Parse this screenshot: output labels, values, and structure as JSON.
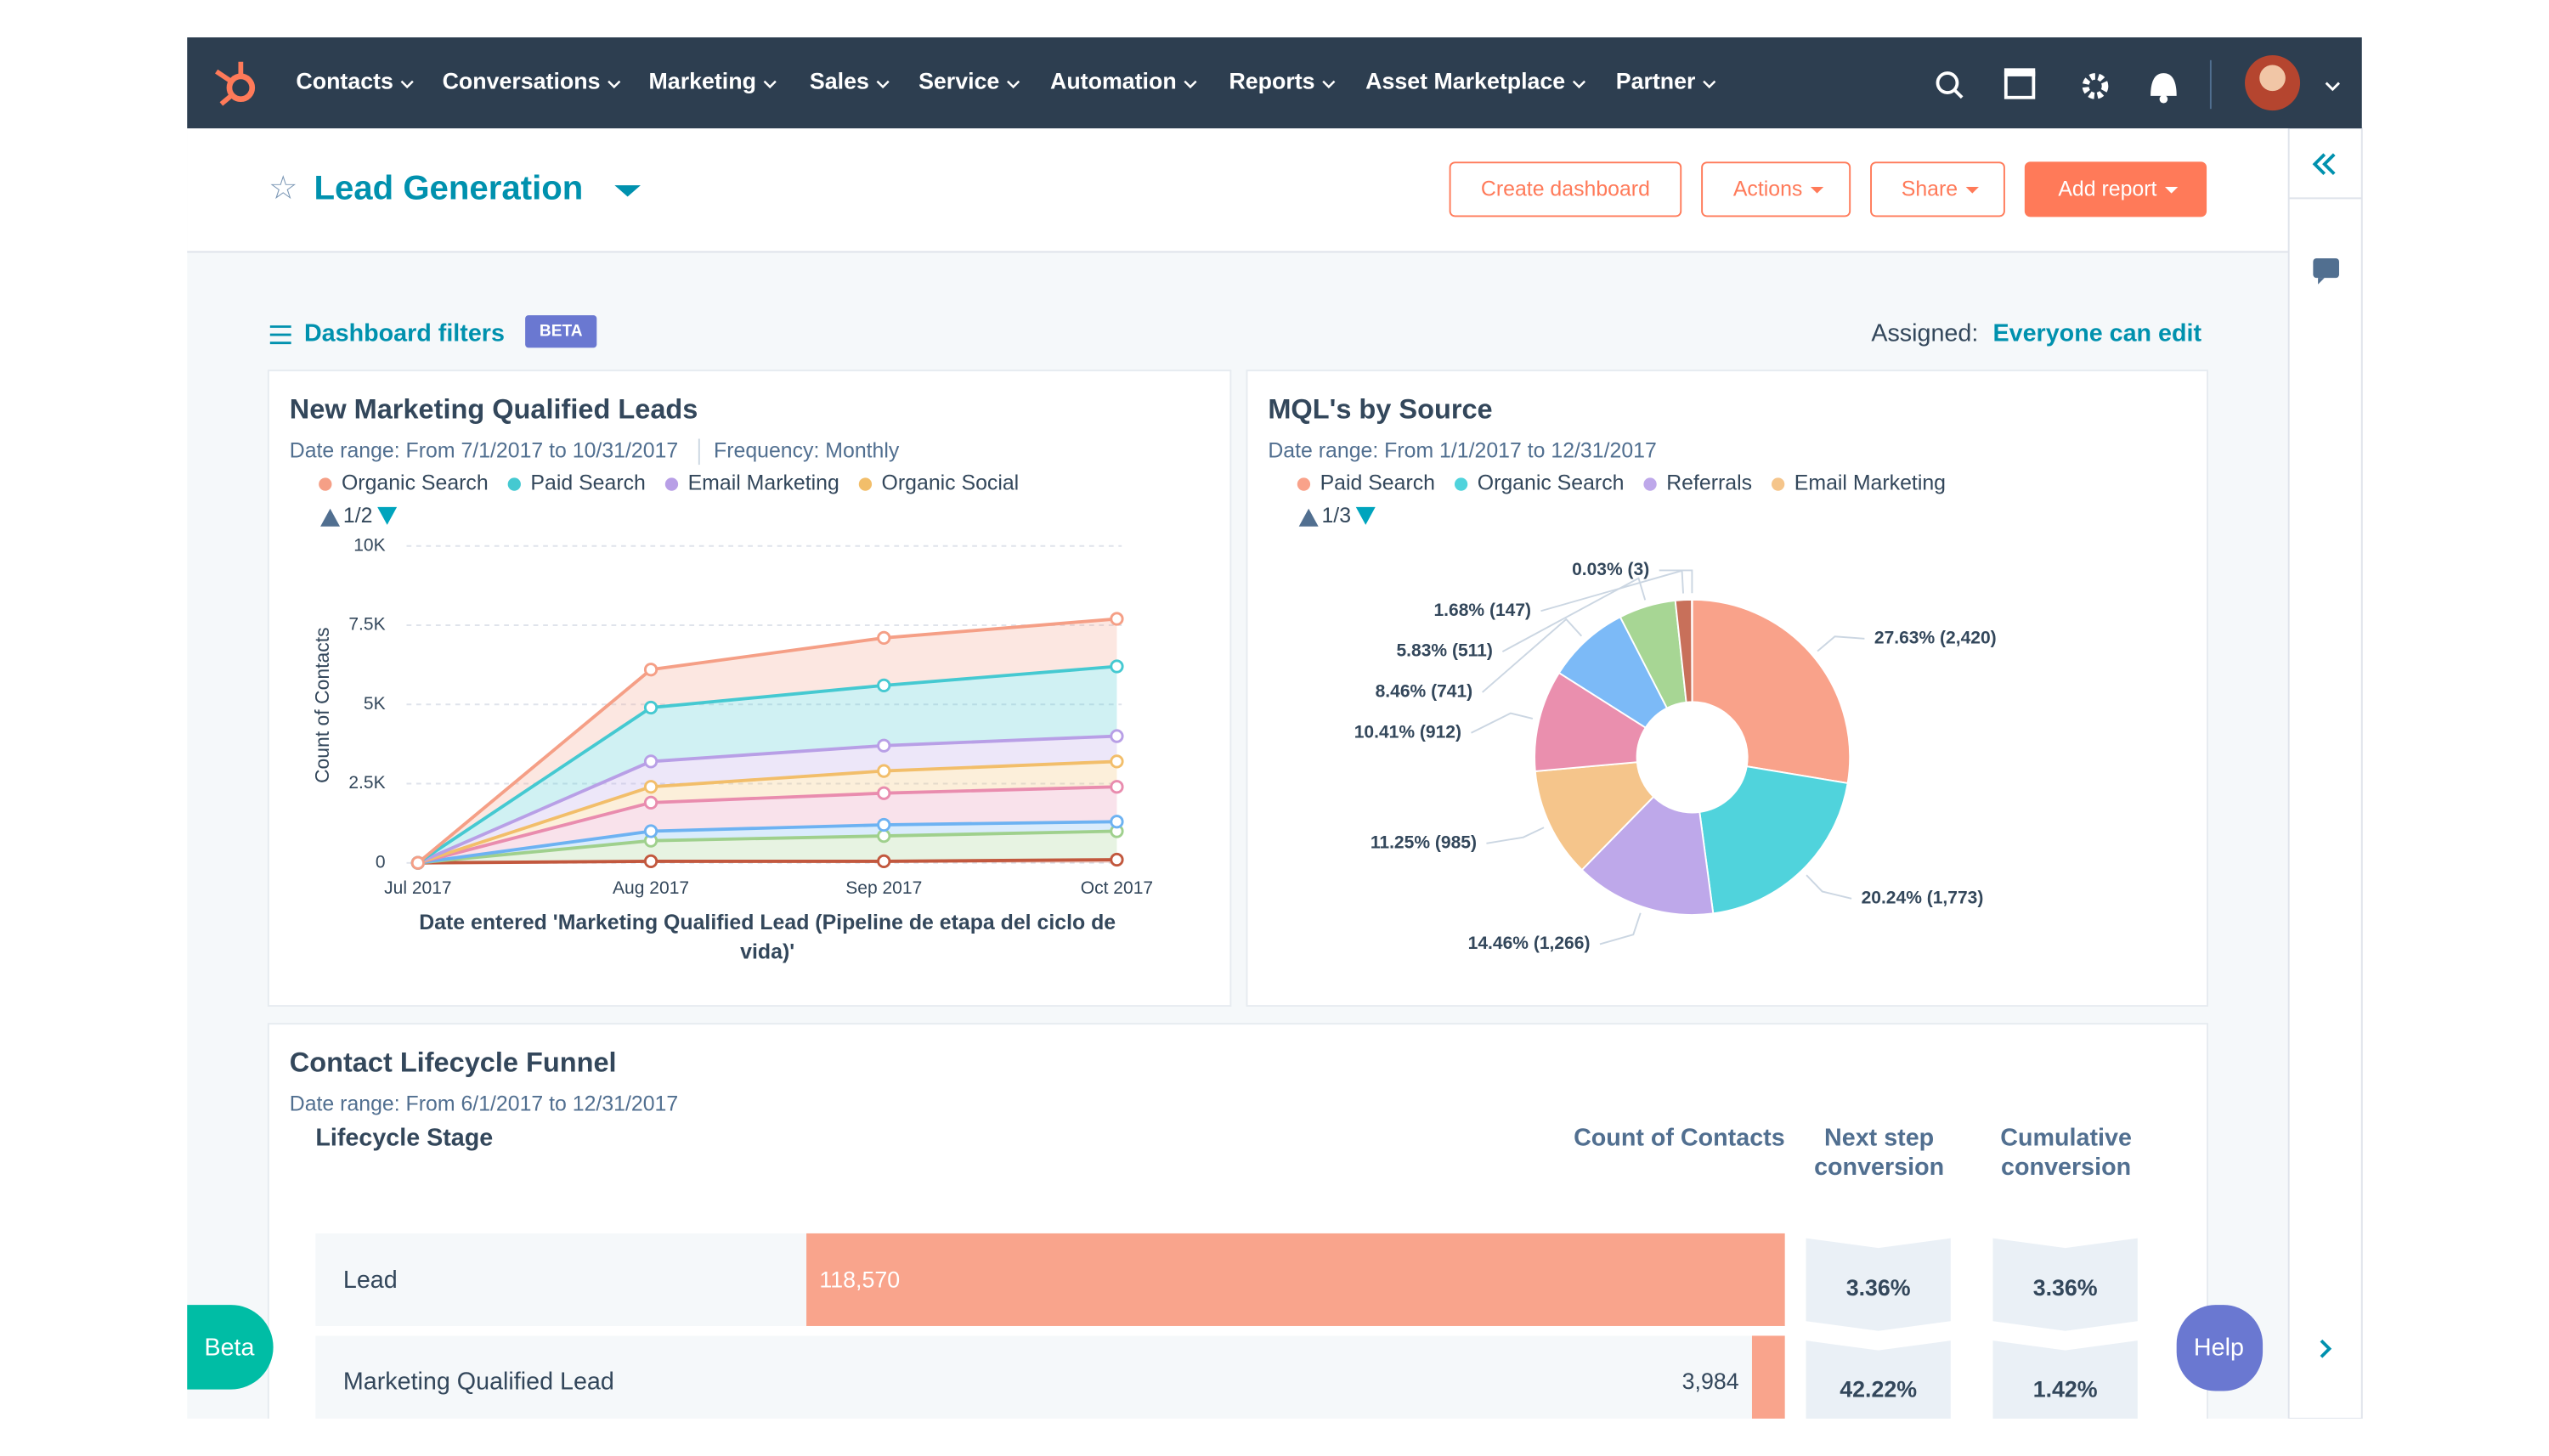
{
  "nav": {
    "items": [
      "Contacts",
      "Conversations",
      "Marketing",
      "Sales",
      "Service",
      "Automation",
      "Reports",
      "Asset Marketplace",
      "Partner"
    ]
  },
  "header": {
    "title": "Lead Generation",
    "buttons": [
      "Create dashboard",
      "Actions",
      "Share",
      "Add report"
    ]
  },
  "filters": {
    "label": "Dashboard filters",
    "badge": "BETA",
    "assigned_label": "Assigned:",
    "assigned_value": "Everyone can edit"
  },
  "line_chart": {
    "type": "line",
    "stacked": true,
    "grid": true,
    "title": "New Marketing Qualified Leads",
    "date_range": "Date range: From 7/1/2017 to 10/31/2017",
    "frequency": "Frequency: Monthly",
    "page": "1/2",
    "categories": [
      "Jul 2017",
      "Aug 2017",
      "Sep 2017",
      "Oct 2017"
    ],
    "y_label": "Count of Contacts",
    "x_label": "Date entered 'Marketing Qualified Lead (Pipeline de etapa del ciclo de vida)'",
    "ylim": [
      0,
      10000
    ],
    "yticks": [
      0,
      {
        "value": 2500,
        "label": "2.5K"
      },
      {
        "value": 5000,
        "label": "5K"
      },
      {
        "value": 7500,
        "label": "7.5K"
      },
      {
        "value": 10000,
        "label": "10K"
      }
    ],
    "series": [
      {
        "name": "Organic Search",
        "color": "#f59f86",
        "values": [
          0,
          1200,
          1500,
          1500
        ]
      },
      {
        "name": "Paid Search",
        "color": "#45c9d1",
        "values": [
          0,
          1700,
          1900,
          2200
        ]
      },
      {
        "name": "Email Marketing",
        "color": "#b89fe6",
        "values": [
          0,
          800,
          800,
          800
        ]
      },
      {
        "name": "Organic Social",
        "color": "#f2be6a",
        "values": [
          0,
          500,
          700,
          800
        ]
      },
      {
        "name": null,
        "color": "#e98cae",
        "values": [
          0,
          900,
          1000,
          1100
        ]
      },
      {
        "name": null,
        "color": "#6db2f2",
        "values": [
          0,
          300,
          350,
          300
        ]
      },
      {
        "name": null,
        "color": "#9fd08d",
        "values": [
          0,
          650,
          800,
          900
        ]
      },
      {
        "name": null,
        "color": "#c2583e",
        "values": [
          0,
          50,
          50,
          100
        ]
      }
    ]
  },
  "pie_chart": {
    "type": "pie",
    "title": "MQL's by Source",
    "date_range": "Date range: From 1/1/2017 to 12/31/2017",
    "page": "1/3",
    "categories": [
      "Paid Search",
      "Organic Search",
      "Referrals",
      "Email Marketing",
      null,
      null,
      null,
      null,
      null
    ],
    "values": [
      2420,
      1773,
      1266,
      985,
      912,
      741,
      511,
      147,
      3
    ],
    "value_labels": [
      "27.63% (2,420)",
      "20.24% (1,773)",
      "14.46% (1,266)",
      "11.25% (985)",
      "10.41% (912)",
      "8.46% (741)",
      "5.83% (511)",
      "1.68% (147)",
      "0.03% (3)"
    ],
    "colors": [
      "#f9a28a",
      "#50d3dc",
      "#bea8ea",
      "#f5c58b",
      "#ea8fae",
      "#7cbaf7",
      "#a7d694",
      "#c8705a",
      "#5a3b3b"
    ]
  },
  "funnel": {
    "title": "Contact Lifecycle Funnel",
    "date_range": "Date range: From 6/1/2017 to 12/31/2017",
    "columns": [
      "Lifecycle Stage",
      "Count of Contacts",
      "Next step conversion",
      "Cumulative conversion"
    ],
    "stages": [
      "Lead",
      "Marketing Qualified Lead"
    ],
    "counts": [
      118570,
      3984
    ],
    "count_labels": [
      "118,570",
      "3,984"
    ],
    "next_step": [
      "3.36%",
      "42.22%"
    ],
    "cumulative": [
      "3.36%",
      "1.42%"
    ],
    "color": "#f9a48c"
  },
  "buttons": {
    "beta": "Beta",
    "help": "Help"
  }
}
